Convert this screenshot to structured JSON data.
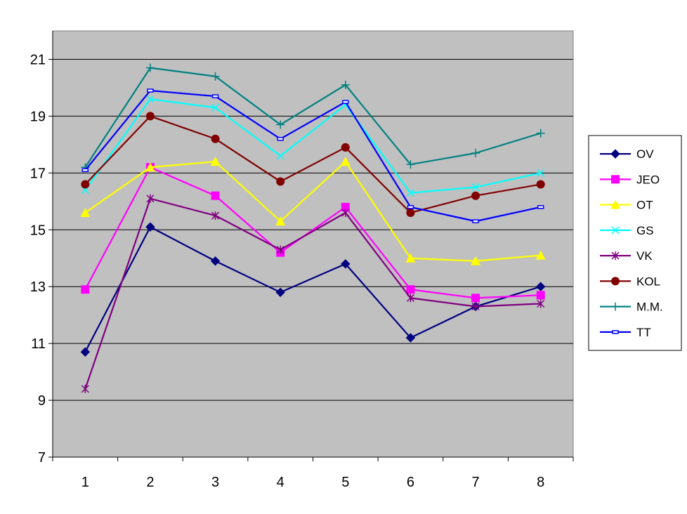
{
  "chart_data": {
    "type": "line",
    "title": "",
    "xlabel": "",
    "ylabel": "",
    "x": [
      1,
      2,
      3,
      4,
      5,
      6,
      7,
      8
    ],
    "x_tick_labels": [
      "1",
      "2",
      "3",
      "4",
      "5",
      "6",
      "7",
      "8"
    ],
    "ylim": [
      7,
      22
    ],
    "y_ticks": [
      7,
      9,
      11,
      13,
      15,
      17,
      19,
      21
    ],
    "y_tick_labels": [
      "7",
      "9",
      "11",
      "13",
      "15",
      "17",
      "19",
      "21"
    ],
    "grid": "horizontal",
    "legend_position": "right",
    "plot_background": "#c0c0c0",
    "gridline_color": "#000000",
    "series": [
      {
        "name": "OV",
        "color": "#000080",
        "marker": "diamond",
        "values": [
          10.7,
          15.1,
          13.9,
          12.8,
          13.8,
          11.2,
          12.3,
          13.0
        ]
      },
      {
        "name": "JEO",
        "color": "#ff00ff",
        "marker": "square",
        "values": [
          12.9,
          17.2,
          16.2,
          14.2,
          15.8,
          12.9,
          12.6,
          12.7
        ]
      },
      {
        "name": "OT",
        "color": "#ffff00",
        "marker": "triangle",
        "values": [
          15.6,
          17.2,
          17.4,
          15.3,
          17.4,
          14.0,
          13.9,
          14.1
        ]
      },
      {
        "name": "GS",
        "color": "#00ffff",
        "marker": "x",
        "values": [
          16.4,
          19.6,
          19.3,
          17.6,
          19.4,
          16.3,
          16.5,
          17.0
        ]
      },
      {
        "name": "VK",
        "color": "#800080",
        "marker": "star",
        "values": [
          9.4,
          16.1,
          15.5,
          14.3,
          15.6,
          12.6,
          12.3,
          12.4
        ]
      },
      {
        "name": "KOL",
        "color": "#800000",
        "marker": "circle",
        "values": [
          16.6,
          19.0,
          18.2,
          16.7,
          17.9,
          15.6,
          16.2,
          16.6
        ]
      },
      {
        "name": "M.M.",
        "color": "#008080",
        "marker": "plus",
        "values": [
          17.2,
          20.7,
          20.4,
          18.7,
          20.1,
          17.3,
          17.7,
          18.4
        ]
      },
      {
        "name": "TT",
        "color": "#0000ff",
        "marker": "dash",
        "values": [
          17.1,
          19.9,
          19.7,
          18.2,
          19.5,
          15.8,
          15.3,
          15.8
        ]
      }
    ]
  }
}
